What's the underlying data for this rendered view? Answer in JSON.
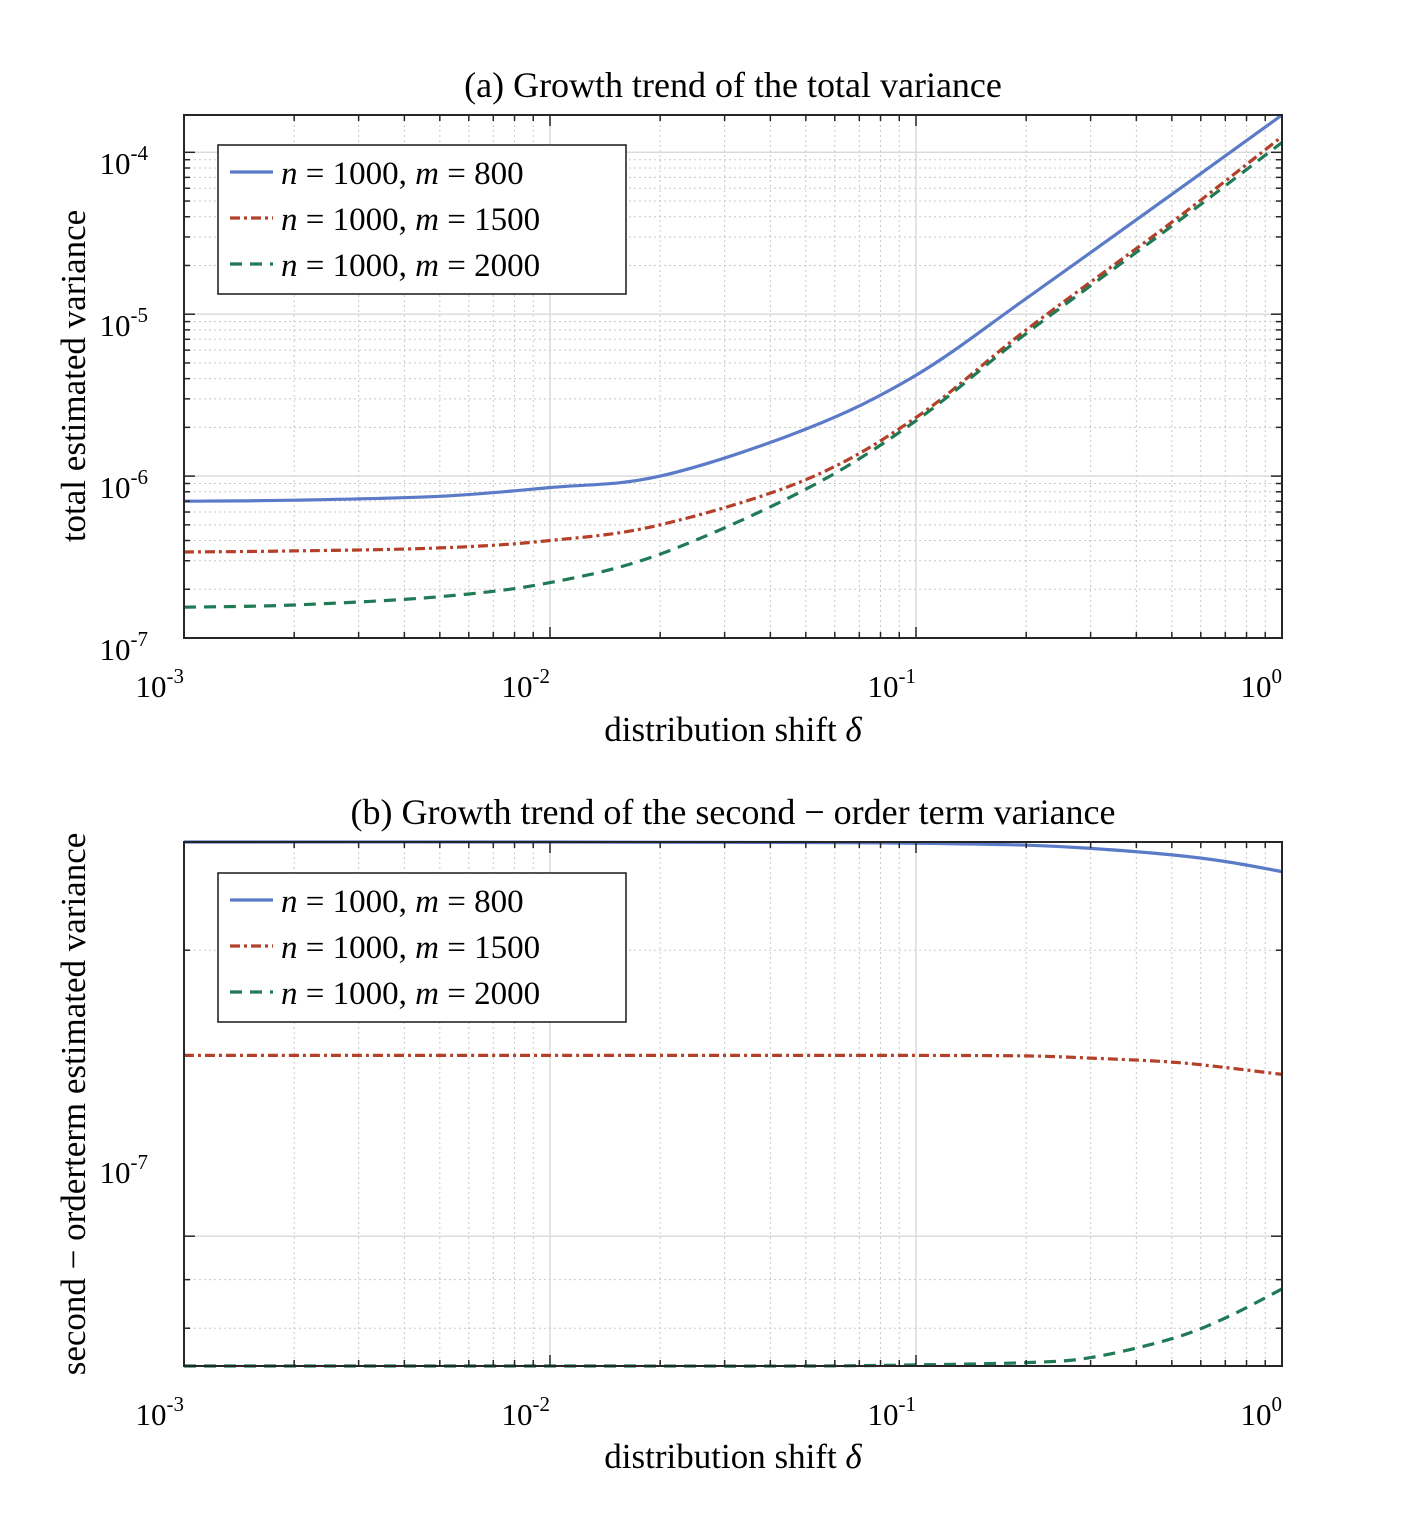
{
  "chart_data": [
    {
      "type": "line",
      "title": "(a) Growth trend of the total variance",
      "xlabel": "distribution shift",
      "xlabel_symbol": "δ",
      "ylabel": "total estimated variance",
      "xscale": "log",
      "yscale": "log",
      "xlim": [
        0.001,
        1
      ],
      "ylim": [
        1e-07,
        0.00017
      ],
      "grid": true,
      "legend_position": "top-left",
      "x_ticks": [
        {
          "base": "10",
          "exp": "-3"
        },
        {
          "base": "10",
          "exp": "-2"
        },
        {
          "base": "10",
          "exp": "-1"
        },
        {
          "base": "10",
          "exp": "0"
        }
      ],
      "y_ticks": [
        {
          "base": "10",
          "exp": "-7"
        },
        {
          "base": "10",
          "exp": "-6"
        },
        {
          "base": "10",
          "exp": "-5"
        },
        {
          "base": "10",
          "exp": "-4"
        }
      ],
      "x": [
        0.001,
        0.002,
        0.005,
        0.01,
        0.02,
        0.05,
        0.1,
        0.2,
        0.5,
        1
      ],
      "series": [
        {
          "name": "n = 1000, m = 800",
          "n_label": "n",
          "n_value": "1000",
          "m_label": "m",
          "m_value": "800",
          "color": "#5b7bc8",
          "dash": "solid",
          "values": [
            7e-07,
            7.1e-07,
            7.5e-07,
            8.5e-07,
            1e-06,
            1.95e-06,
            4.2e-06,
            1.25e-05,
            5.5e-05,
            0.00017
          ]
        },
        {
          "name": "n = 1000, m = 1500",
          "n_label": "n",
          "n_value": "1000",
          "m_label": "m",
          "m_value": "1500",
          "color": "#b5402a",
          "dash": "dashdot",
          "values": [
            3.4e-07,
            3.45e-07,
            3.6e-07,
            4e-07,
            5e-07,
            9.5e-07,
            2.3e-06,
            8e-06,
            3.7e-05,
            0.000125
          ]
        },
        {
          "name": "n = 1000, m = 2000",
          "n_label": "n",
          "n_value": "1000",
          "m_label": "m",
          "m_value": "2000",
          "color": "#1f7a55",
          "dash": "dashed",
          "values": [
            1.55e-07,
            1.6e-07,
            1.8e-07,
            2.2e-07,
            3.3e-07,
            8.3e-07,
            2.2e-06,
            7.6e-06,
            3.5e-05,
            0.000115
          ]
        }
      ]
    },
    {
      "type": "line",
      "title": "(b) Growth trend of the second − order term variance",
      "xlabel": "distribution shift",
      "xlabel_symbol": "δ",
      "ylabel": "second − orderterm estimated variance",
      "xscale": "log",
      "yscale": "log",
      "xlim": [
        0.001,
        1
      ],
      "ylim": [
        7.3e-08,
        2.6e-07
      ],
      "grid": true,
      "legend_position": "top-left",
      "x_ticks": [
        {
          "base": "10",
          "exp": "-3"
        },
        {
          "base": "10",
          "exp": "-2"
        },
        {
          "base": "10",
          "exp": "-1"
        },
        {
          "base": "10",
          "exp": "0"
        }
      ],
      "y_ticks": [
        {
          "base": "10",
          "exp": "-7"
        }
      ],
      "x": [
        0.001,
        0.01,
        0.05,
        0.1,
        0.2,
        0.3,
        0.5,
        0.7,
        1
      ],
      "series": [
        {
          "name": "n = 1000, m = 800",
          "n_label": "n",
          "n_value": "1000",
          "m_label": "m",
          "m_value": "800",
          "color": "#5b7bc8",
          "dash": "solid",
          "values": [
            2.6e-07,
            2.6e-07,
            2.597e-07,
            2.592e-07,
            2.58e-07,
            2.56e-07,
            2.52e-07,
            2.48e-07,
            2.42e-07
          ]
        },
        {
          "name": "n = 1000, m = 1500",
          "n_label": "n",
          "n_value": "1000",
          "m_label": "m",
          "m_value": "1500",
          "color": "#b5402a",
          "dash": "dashdot",
          "values": [
            1.55e-07,
            1.55e-07,
            1.55e-07,
            1.55e-07,
            1.548e-07,
            1.54e-07,
            1.525e-07,
            1.505e-07,
            1.48e-07
          ]
        },
        {
          "name": "n = 1000, m = 2000",
          "n_label": "n",
          "n_value": "1000",
          "m_label": "m",
          "m_value": "2000",
          "color": "#1f7a55",
          "dash": "dashed",
          "values": [
            7.3e-08,
            7.3e-08,
            7.3e-08,
            7.32e-08,
            7.36e-08,
            7.45e-08,
            7.8e-08,
            8.2e-08,
            8.8e-08
          ]
        }
      ]
    }
  ]
}
